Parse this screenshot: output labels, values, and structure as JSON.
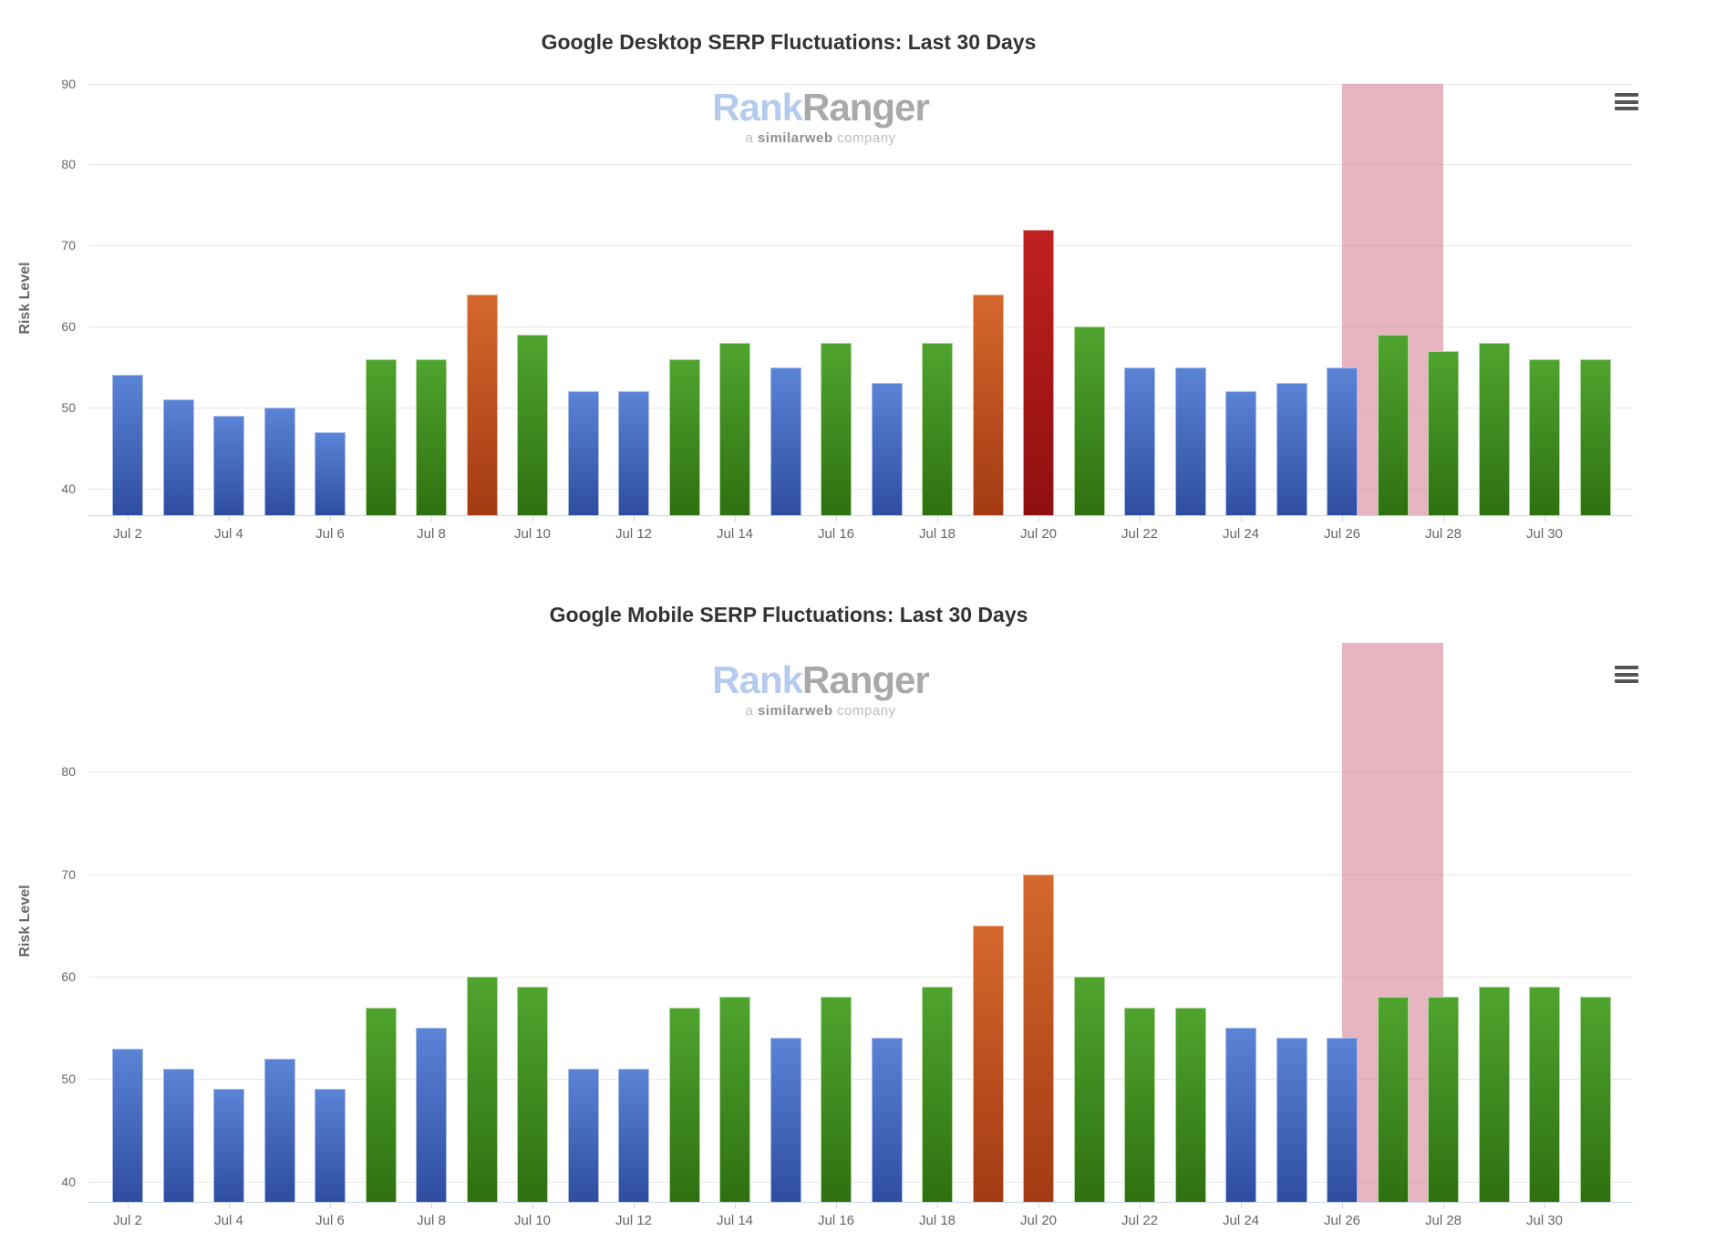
{
  "page": {
    "background": "#ffffff"
  },
  "watermark": {
    "brand_part1": "Rank",
    "brand_part2": "Ranger",
    "tagline_prefix": "a ",
    "tagline_bold": "similarweb",
    "tagline_suffix": " company",
    "brand_part1_color": "#b5cbee",
    "brand_part2_color": "#a9a9a9"
  },
  "palette": {
    "blue": {
      "top": "#5b83d6",
      "bottom": "#2f4da0",
      "border": "#a6bbe8"
    },
    "green": {
      "top": "#4fa42e",
      "bottom": "#2f7011",
      "border": "#aed69a"
    },
    "orange": {
      "top": "#d4682d",
      "bottom": "#a33a12",
      "border": "#eab28c"
    },
    "red": {
      "top": "#c12120",
      "bottom": "#8e100f",
      "border": "#e39594"
    },
    "highlight_band": "rgba(207,105,131,0.5)",
    "gridline": "#e7e7e7",
    "axis_line": "#ccd6eb",
    "label_color": "#666666",
    "title_color": "#333333"
  },
  "charts": [
    {
      "title": "Google Desktop SERP Fluctuations: Last 30 Days",
      "ylabel": "Risk Level"
    },
    {
      "title": "Google Mobile SERP Fluctuations: Last 30 Days",
      "ylabel": "Risk Level"
    }
  ],
  "chart_data": [
    {
      "type": "bar",
      "title": "Google Desktop SERP Fluctuations: Last 30 Days",
      "xlabel": "",
      "ylabel": "Risk Level",
      "x": [
        "Jul 2",
        "Jul 3",
        "Jul 4",
        "Jul 5",
        "Jul 6",
        "Jul 7",
        "Jul 8",
        "Jul 9",
        "Jul 10",
        "Jul 11",
        "Jul 12",
        "Jul 13",
        "Jul 14",
        "Jul 15",
        "Jul 16",
        "Jul 17",
        "Jul 18",
        "Jul 19",
        "Jul 20",
        "Jul 21",
        "Jul 22",
        "Jul 23",
        "Jul 24",
        "Jul 25",
        "Jul 26",
        "Jul 27",
        "Jul 28",
        "Jul 29",
        "Jul 30",
        "Jul 31"
      ],
      "values": [
        54,
        51,
        49,
        50,
        47,
        56,
        56,
        64,
        59,
        52,
        52,
        56,
        58,
        55,
        58,
        53,
        58,
        64,
        72,
        60,
        55,
        55,
        52,
        53,
        55,
        59,
        57,
        58,
        56,
        56
      ],
      "colors": [
        "blue",
        "blue",
        "blue",
        "blue",
        "blue",
        "green",
        "green",
        "orange",
        "green",
        "blue",
        "blue",
        "green",
        "green",
        "blue",
        "green",
        "blue",
        "green",
        "orange",
        "red",
        "green",
        "blue",
        "blue",
        "blue",
        "blue",
        "blue",
        "green",
        "green",
        "green",
        "green",
        "green"
      ],
      "yticks": [
        90,
        80,
        70,
        60,
        50,
        40
      ],
      "xtick_labels": [
        "Jul 2",
        "Jul 4",
        "Jul 6",
        "Jul 8",
        "Jul 10",
        "Jul 12",
        "Jul 14",
        "Jul 16",
        "Jul 18",
        "Jul 20",
        "Jul 22",
        "Jul 24",
        "Jul 26",
        "Jul 28",
        "Jul 30"
      ],
      "ylim": [
        40,
        90
      ],
      "grid": true,
      "legend": "none",
      "plot_band": {
        "from_label": "Jul 26",
        "to_label": "Jul 28",
        "from_index": 24,
        "to_index": 26
      }
    },
    {
      "type": "bar",
      "title": "Google Mobile SERP Fluctuations: Last 30 Days",
      "xlabel": "",
      "ylabel": "Risk Level",
      "x": [
        "Jul 2",
        "Jul 3",
        "Jul 4",
        "Jul 5",
        "Jul 6",
        "Jul 7",
        "Jul 8",
        "Jul 9",
        "Jul 10",
        "Jul 11",
        "Jul 12",
        "Jul 13",
        "Jul 14",
        "Jul 15",
        "Jul 16",
        "Jul 17",
        "Jul 18",
        "Jul 19",
        "Jul 20",
        "Jul 21",
        "Jul 22",
        "Jul 23",
        "Jul 24",
        "Jul 25",
        "Jul 26",
        "Jul 27",
        "Jul 28",
        "Jul 29",
        "Jul 30",
        "Jul 31"
      ],
      "values": [
        53,
        51,
        49,
        52,
        49,
        57,
        55,
        60,
        59,
        51,
        51,
        57,
        58,
        54,
        58,
        54,
        59,
        65,
        70,
        60,
        57,
        57,
        55,
        54,
        54,
        58,
        58,
        59,
        59,
        58
      ],
      "colors": [
        "blue",
        "blue",
        "blue",
        "blue",
        "blue",
        "green",
        "blue",
        "green",
        "green",
        "blue",
        "blue",
        "green",
        "green",
        "blue",
        "green",
        "blue",
        "green",
        "orange",
        "orange",
        "green",
        "green",
        "green",
        "blue",
        "blue",
        "blue",
        "green",
        "green",
        "green",
        "green",
        "green"
      ],
      "yticks": [
        80,
        70,
        60,
        50,
        40
      ],
      "xtick_labels": [
        "Jul 2",
        "Jul 4",
        "Jul 6",
        "Jul 8",
        "Jul 10",
        "Jul 12",
        "Jul 14",
        "Jul 16",
        "Jul 18",
        "Jul 20",
        "Jul 22",
        "Jul 24",
        "Jul 26",
        "Jul 28",
        "Jul 30"
      ],
      "ylim": [
        40,
        80
      ],
      "grid": true,
      "legend": "none",
      "plot_band": {
        "from_label": "Jul 26",
        "to_label": "Jul 28",
        "from_index": 24,
        "to_index": 26
      }
    }
  ]
}
